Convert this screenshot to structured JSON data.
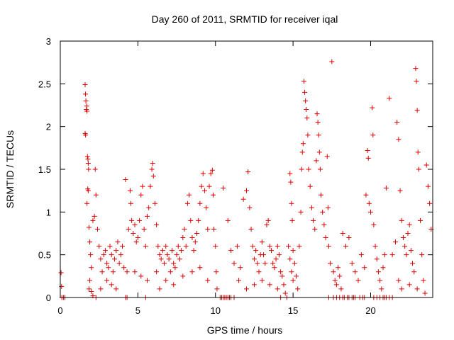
{
  "chart_data": {
    "type": "scatter",
    "title": "Day 260 of 2011, SRMTID for receiver iqal",
    "xlabel": "GPS time / hours",
    "ylabel": "SRMTID / TECUs",
    "xlim": [
      0,
      24
    ],
    "ylim": [
      0,
      3
    ],
    "xticks": [
      0,
      5,
      10,
      15,
      20
    ],
    "yticks": [
      0,
      0.5,
      1,
      1.5,
      2,
      2.5,
      3
    ],
    "xtick_labels": [
      "0",
      "5",
      "10",
      "15",
      "20"
    ],
    "ytick_labels": [
      "0",
      "0.5",
      "1",
      "1.5",
      "2",
      "2.5",
      "3"
    ],
    "grid": false,
    "marker": "+",
    "color": "#dd0000",
    "series": [
      {
        "name": "SRMTID",
        "points": [
          [
            0.05,
            0.29
          ],
          [
            0.08,
            0.13
          ],
          [
            0.1,
            0.0
          ],
          [
            0.2,
            0.0
          ],
          [
            0.3,
            0.0
          ],
          [
            1.6,
            2.49
          ],
          [
            1.62,
            2.38
          ],
          [
            1.65,
            2.3
          ],
          [
            1.68,
            2.2
          ],
          [
            1.7,
            2.24
          ],
          [
            1.72,
            2.18
          ],
          [
            1.6,
            1.92
          ],
          [
            1.63,
            1.9
          ],
          [
            1.75,
            1.65
          ],
          [
            1.78,
            1.62
          ],
          [
            1.8,
            1.57
          ],
          [
            1.82,
            1.5
          ],
          [
            1.77,
            1.27
          ],
          [
            1.8,
            1.25
          ],
          [
            1.72,
            1.1
          ],
          [
            1.85,
            0.82
          ],
          [
            1.9,
            0.65
          ],
          [
            1.95,
            0.5
          ],
          [
            2.0,
            0.35
          ],
          [
            1.9,
            0.2
          ],
          [
            1.85,
            0.1
          ],
          [
            2.0,
            0.07
          ],
          [
            2.1,
            0.02
          ],
          [
            2.1,
            0.9
          ],
          [
            2.2,
            0.95
          ],
          [
            2.25,
            1.5
          ],
          [
            2.3,
            1.2
          ],
          [
            2.4,
            0.8
          ],
          [
            2.5,
            0.6
          ],
          [
            2.6,
            0.45
          ],
          [
            2.7,
            0.3
          ],
          [
            2.8,
            0.5
          ],
          [
            2.9,
            0.55
          ],
          [
            3.0,
            0.4
          ],
          [
            3.1,
            0.35
          ],
          [
            3.2,
            0.6
          ],
          [
            3.3,
            0.5
          ],
          [
            3.4,
            0.3
          ],
          [
            3.5,
            0.45
          ],
          [
            3.6,
            0.55
          ],
          [
            3.7,
            0.65
          ],
          [
            3.8,
            0.4
          ],
          [
            3.9,
            0.5
          ],
          [
            4.0,
            0.6
          ],
          [
            4.1,
            0.35
          ],
          [
            4.2,
            1.38
          ],
          [
            4.3,
            0.3
          ],
          [
            2.3,
            0.0
          ],
          [
            2.6,
            0.1
          ],
          [
            3.0,
            0.2
          ],
          [
            3.3,
            0.15
          ],
          [
            3.6,
            0.1
          ],
          [
            4.2,
            0.0
          ],
          [
            4.3,
            0.0
          ],
          [
            4.4,
            0.8
          ],
          [
            4.5,
            1.25
          ],
          [
            4.55,
            1.1
          ],
          [
            4.6,
            0.9
          ],
          [
            4.7,
            0.75
          ],
          [
            4.8,
            0.85
          ],
          [
            4.9,
            0.65
          ],
          [
            5.0,
            0.7
          ],
          [
            5.1,
            0.9
          ],
          [
            5.2,
            1.2
          ],
          [
            5.3,
            1.3
          ],
          [
            5.4,
            0.8
          ],
          [
            5.5,
            0.6
          ],
          [
            5.6,
            0.95
          ],
          [
            5.7,
            1.05
          ],
          [
            5.8,
            1.3
          ],
          [
            5.9,
            1.5
          ],
          [
            5.95,
            1.57
          ],
          [
            6.0,
            1.42
          ],
          [
            6.1,
            1.1
          ],
          [
            6.2,
            0.85
          ],
          [
            6.3,
            0.6
          ],
          [
            6.4,
            0.5
          ],
          [
            6.5,
            0.45
          ],
          [
            6.6,
            0.55
          ],
          [
            6.7,
            0.4
          ],
          [
            6.8,
            0.6
          ],
          [
            6.9,
            0.5
          ],
          [
            7.0,
            0.45
          ],
          [
            7.1,
            0.3
          ],
          [
            7.2,
            0.55
          ],
          [
            7.3,
            0.4
          ],
          [
            7.4,
            0.35
          ],
          [
            7.5,
            0.5
          ],
          [
            7.6,
            0.6
          ],
          [
            7.7,
            0.45
          ],
          [
            7.8,
            0.55
          ],
          [
            7.9,
            0.7
          ],
          [
            8.0,
            0.8
          ],
          [
            8.1,
            0.6
          ],
          [
            8.2,
            1.1
          ],
          [
            8.3,
            1.2
          ],
          [
            8.4,
            0.9
          ],
          [
            8.5,
            0.7
          ],
          [
            8.6,
            0.55
          ],
          [
            8.7,
            0.65
          ],
          [
            8.8,
            0.75
          ],
          [
            8.9,
            0.9
          ],
          [
            9.0,
            1.1
          ],
          [
            9.1,
            1.3
          ],
          [
            9.2,
            1.45
          ],
          [
            9.3,
            1.25
          ],
          [
            9.4,
            1.05
          ],
          [
            9.5,
            0.8
          ],
          [
            9.6,
            1.3
          ],
          [
            9.7,
            1.45
          ],
          [
            9.8,
            1.49
          ],
          [
            9.85,
            1.2
          ],
          [
            9.9,
            0.8
          ],
          [
            10.0,
            0.6
          ],
          [
            10.05,
            0.3
          ],
          [
            10.1,
            0.1
          ],
          [
            4.8,
            0.3
          ],
          [
            5.2,
            0.25
          ],
          [
            5.6,
            0.2
          ],
          [
            6.2,
            0.3
          ],
          [
            6.8,
            0.2
          ],
          [
            7.3,
            0.15
          ],
          [
            7.9,
            0.25
          ],
          [
            8.5,
            0.3
          ],
          [
            9.0,
            0.35
          ],
          [
            9.5,
            0.2
          ],
          [
            5.5,
            0.0
          ],
          [
            6.4,
            0.1
          ],
          [
            10.3,
            0.0
          ],
          [
            10.4,
            0.0
          ],
          [
            10.5,
            0.0
          ],
          [
            10.6,
            0.0
          ],
          [
            10.7,
            0.0
          ],
          [
            10.8,
            0.0
          ],
          [
            10.9,
            0.0
          ],
          [
            11.0,
            0.0
          ],
          [
            11.2,
            0.0
          ],
          [
            10.5,
            1.28
          ],
          [
            10.8,
            0.9
          ],
          [
            11.0,
            0.55
          ],
          [
            11.2,
            0.4
          ],
          [
            11.4,
            0.6
          ],
          [
            11.6,
            0.35
          ],
          [
            11.8,
            1.15
          ],
          [
            12.0,
            1.25
          ],
          [
            12.1,
            1.47
          ],
          [
            12.2,
            1.05
          ],
          [
            12.3,
            0.8
          ],
          [
            12.4,
            0.6
          ],
          [
            12.5,
            0.45
          ],
          [
            12.6,
            0.55
          ],
          [
            12.7,
            0.4
          ],
          [
            12.8,
            0.3
          ],
          [
            12.9,
            0.5
          ],
          [
            13.0,
            0.65
          ],
          [
            13.1,
            0.5
          ],
          [
            13.2,
            0.4
          ],
          [
            13.3,
            0.85
          ],
          [
            13.4,
            0.9
          ],
          [
            13.5,
            0.6
          ],
          [
            13.6,
            0.55
          ],
          [
            13.7,
            0.4
          ],
          [
            13.8,
            0.35
          ],
          [
            13.9,
            0.45
          ],
          [
            14.0,
            0.6
          ],
          [
            14.1,
            0.5
          ],
          [
            14.2,
            0.3
          ],
          [
            14.3,
            0.25
          ],
          [
            14.4,
            0.15
          ],
          [
            14.5,
            0.05
          ],
          [
            14.6,
            0.0
          ],
          [
            14.7,
            0.6
          ],
          [
            14.8,
            0.45
          ],
          [
            14.9,
            0.3
          ],
          [
            15.0,
            0.2
          ],
          [
            11.5,
            0.2
          ],
          [
            12.0,
            0.1
          ],
          [
            12.5,
            0.15
          ],
          [
            13.0,
            0.2
          ],
          [
            13.5,
            0.15
          ],
          [
            14.0,
            0.1
          ],
          [
            14.2,
            0.0
          ],
          [
            14.8,
            1.45
          ],
          [
            14.85,
            1.35
          ],
          [
            14.9,
            1.1
          ],
          [
            14.95,
            0.9
          ],
          [
            15.0,
            0.55
          ],
          [
            15.1,
            0.4
          ],
          [
            15.2,
            0.25
          ],
          [
            15.3,
            0.1
          ],
          [
            15.4,
            0.6
          ],
          [
            15.5,
            1.0
          ],
          [
            15.55,
            1.5
          ],
          [
            15.6,
            1.7
          ],
          [
            15.65,
            1.8
          ],
          [
            15.7,
            2.53
          ],
          [
            15.75,
            2.4
          ],
          [
            15.8,
            2.3
          ],
          [
            15.85,
            2.2
          ],
          [
            15.9,
            2.1
          ],
          [
            15.95,
            1.9
          ],
          [
            16.0,
            1.5
          ],
          [
            16.1,
            1.3
          ],
          [
            16.2,
            1.05
          ],
          [
            16.3,
            0.9
          ],
          [
            16.4,
            0.8
          ],
          [
            16.5,
            1.6
          ],
          [
            16.55,
            2.15
          ],
          [
            16.6,
            2.05
          ],
          [
            16.65,
            1.9
          ],
          [
            16.7,
            1.7
          ],
          [
            16.75,
            1.5
          ],
          [
            16.8,
            1.2
          ],
          [
            16.9,
            1.0
          ],
          [
            17.0,
            0.85
          ],
          [
            17.1,
            0.7
          ],
          [
            17.2,
            1.65
          ],
          [
            17.25,
            1.05
          ],
          [
            17.3,
            0.6
          ],
          [
            17.4,
            0.4
          ],
          [
            17.5,
            2.76
          ],
          [
            17.6,
            0.3
          ],
          [
            17.7,
            0.2
          ],
          [
            17.8,
            0.15
          ],
          [
            17.9,
            0.35
          ],
          [
            18.0,
            0.25
          ],
          [
            18.1,
            0.1
          ],
          [
            17.3,
            0.0
          ],
          [
            17.6,
            0.0
          ],
          [
            17.8,
            0.0
          ],
          [
            18.0,
            0.0
          ],
          [
            18.2,
            0.0
          ],
          [
            18.3,
            0.0
          ],
          [
            18.5,
            0.0
          ],
          [
            18.6,
            0.0
          ],
          [
            18.8,
            0.0
          ],
          [
            18.9,
            0.0
          ],
          [
            19.0,
            0.0
          ],
          [
            19.3,
            0.0
          ],
          [
            19.5,
            0.0
          ],
          [
            19.6,
            0.0
          ],
          [
            18.2,
            0.75
          ],
          [
            18.4,
            0.6
          ],
          [
            18.6,
            0.7
          ],
          [
            18.8,
            0.4
          ],
          [
            19.0,
            0.3
          ],
          [
            19.2,
            0.2
          ],
          [
            19.4,
            0.5
          ],
          [
            19.6,
            0.35
          ],
          [
            19.7,
            1.2
          ],
          [
            19.8,
            1.72
          ],
          [
            19.85,
            1.63
          ],
          [
            19.9,
            1.1
          ],
          [
            20.0,
            1.0
          ],
          [
            20.1,
            2.22
          ],
          [
            20.15,
            1.9
          ],
          [
            20.2,
            0.85
          ],
          [
            20.3,
            0.6
          ],
          [
            20.4,
            0.45
          ],
          [
            20.5,
            0.3
          ],
          [
            20.6,
            0.2
          ],
          [
            20.7,
            0.1
          ],
          [
            20.8,
            0.35
          ],
          [
            20.9,
            0.5
          ],
          [
            21.0,
            1.28
          ],
          [
            20.2,
            0.0
          ],
          [
            20.4,
            0.0
          ],
          [
            20.6,
            0.0
          ],
          [
            20.8,
            0.0
          ],
          [
            20.9,
            0.0
          ],
          [
            21.0,
            0.0
          ],
          [
            21.2,
            0.0
          ],
          [
            21.4,
            0.0
          ],
          [
            21.2,
            2.33
          ],
          [
            21.4,
            0.5
          ],
          [
            21.6,
            0.65
          ],
          [
            21.7,
            2.05
          ],
          [
            21.8,
            1.85
          ],
          [
            21.9,
            1.25
          ],
          [
            22.0,
            0.9
          ],
          [
            22.1,
            0.7
          ],
          [
            22.2,
            0.6
          ],
          [
            22.3,
            0.5
          ],
          [
            22.4,
            0.75
          ],
          [
            22.5,
            0.85
          ],
          [
            22.6,
            0.55
          ],
          [
            22.7,
            0.4
          ],
          [
            22.8,
            0.3
          ],
          [
            22.9,
            2.68
          ],
          [
            22.95,
            2.53
          ],
          [
            23.0,
            2.19
          ],
          [
            23.05,
            1.7
          ],
          [
            23.1,
            1.5
          ],
          [
            23.2,
            0.9
          ],
          [
            23.3,
            0.5
          ],
          [
            23.4,
            0.2
          ],
          [
            23.5,
            0.05
          ],
          [
            23.6,
            1.55
          ],
          [
            23.7,
            1.3
          ],
          [
            23.8,
            1.1
          ],
          [
            23.9,
            0.8
          ],
          [
            21.8,
            0.2
          ],
          [
            22.0,
            0.1
          ],
          [
            22.5,
            0.15
          ],
          [
            23.0,
            0.1
          ]
        ]
      }
    ]
  }
}
